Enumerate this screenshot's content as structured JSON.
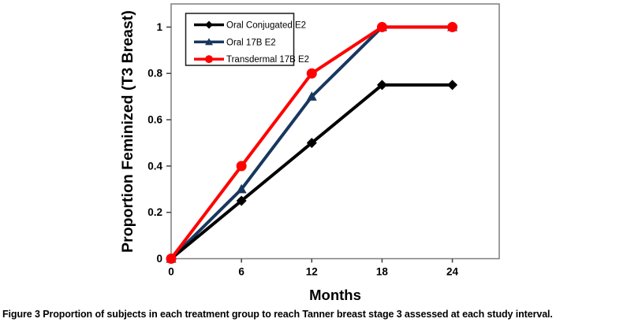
{
  "figure": {
    "caption_label": "Figure 3",
    "caption_text": "Proportion of subjects in each treatment group to reach Tanner breast stage 3 assessed at each study interval."
  },
  "chart_data": {
    "type": "line",
    "title": "",
    "xlabel": "Months",
    "ylabel": "Proportion Feminized (T3 Breast)",
    "x": [
      0,
      6,
      12,
      18,
      24
    ],
    "xtick_labels": [
      "0",
      "6",
      "12",
      "18",
      "24"
    ],
    "yticks": [
      0,
      0.2,
      0.4,
      0.6,
      0.8,
      1
    ],
    "ytick_labels": [
      "0",
      "0.2",
      "0.4",
      "0.6",
      "0.8",
      "1"
    ],
    "xlim": [
      0,
      28
    ],
    "ylim": [
      0,
      1.1
    ],
    "grid": false,
    "legend_position": "top-left-inside",
    "frame_color": "#7f7f7f",
    "series": [
      {
        "name": "Oral Conjugated E2",
        "color": "#000000",
        "marker": "diamond",
        "values": [
          0,
          0.25,
          0.5,
          0.75,
          0.75
        ]
      },
      {
        "name": "Oral 17B E2",
        "color": "#17375E",
        "marker": "triangle",
        "values": [
          0,
          0.3,
          0.7,
          1,
          1
        ]
      },
      {
        "name": "Transdermal 17B E2",
        "color": "#FF0000",
        "marker": "circle",
        "values": [
          0,
          0.4,
          0.8,
          1,
          1
        ]
      }
    ]
  }
}
